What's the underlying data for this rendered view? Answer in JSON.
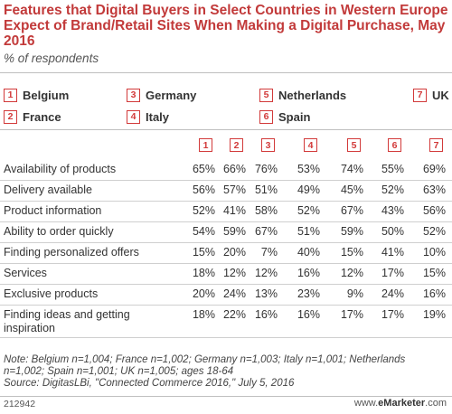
{
  "header": {
    "title": "Features that Digital Buyers in Select Countries in Western Europe Expect of Brand/Retail Sites When Making a Digital Purchase, May 2016",
    "subtitle": "% of respondents"
  },
  "legend": [
    {
      "num": "1",
      "country": "Belgium"
    },
    {
      "num": "2",
      "country": "France"
    },
    {
      "num": "3",
      "country": "Germany"
    },
    {
      "num": "4",
      "country": "Italy"
    },
    {
      "num": "5",
      "country": "Netherlands"
    },
    {
      "num": "6",
      "country": "Spain"
    },
    {
      "num": "7",
      "country": "UK"
    }
  ],
  "chart_data": {
    "type": "table",
    "title": "Features that Digital Buyers in Select Countries in Western Europe Expect of Brand/Retail Sites When Making a Digital Purchase, May 2016",
    "subtitle": "% of respondents",
    "columns": [
      "1",
      "2",
      "3",
      "4",
      "5",
      "6",
      "7"
    ],
    "rows": [
      {
        "label": "Availability of products",
        "values": [
          "65%",
          "66%",
          "76%",
          "53%",
          "74%",
          "55%",
          "69%"
        ]
      },
      {
        "label": "Delivery available",
        "values": [
          "56%",
          "57%",
          "51%",
          "49%",
          "45%",
          "52%",
          "63%"
        ]
      },
      {
        "label": "Product information",
        "values": [
          "52%",
          "41%",
          "58%",
          "52%",
          "67%",
          "43%",
          "56%"
        ]
      },
      {
        "label": "Ability to order quickly",
        "values": [
          "54%",
          "59%",
          "67%",
          "51%",
          "59%",
          "50%",
          "52%"
        ]
      },
      {
        "label": "Finding personalized offers",
        "values": [
          "15%",
          "20%",
          "7%",
          "40%",
          "15%",
          "41%",
          "10%"
        ]
      },
      {
        "label": "Services",
        "values": [
          "18%",
          "12%",
          "12%",
          "16%",
          "12%",
          "17%",
          "15%"
        ]
      },
      {
        "label": "Exclusive products",
        "values": [
          "20%",
          "24%",
          "13%",
          "23%",
          "9%",
          "24%",
          "16%"
        ]
      },
      {
        "label": "Finding ideas and getting inspiration",
        "values": [
          "18%",
          "22%",
          "16%",
          "16%",
          "17%",
          "17%",
          "19%"
        ]
      }
    ]
  },
  "footer": {
    "note": "Note: Belgium n=1,004; France n=1,002; Germany n=1,003; Italy n=1,001; Netherlands n=1,002; Spain n=1,001; UK n=1,005; ages 18-64",
    "source": "Source: DigitasLBi, \"Connected Commerce 2016,\" July 5, 2016",
    "id": "212942",
    "brand_prefix": "www.",
    "brand_name": "eMarketer",
    "brand_suffix": ".com"
  },
  "colors": {
    "accent": "#d23a3a",
    "title": "#c23a3a",
    "text": "#333333",
    "rule": "#cfcfcf"
  }
}
